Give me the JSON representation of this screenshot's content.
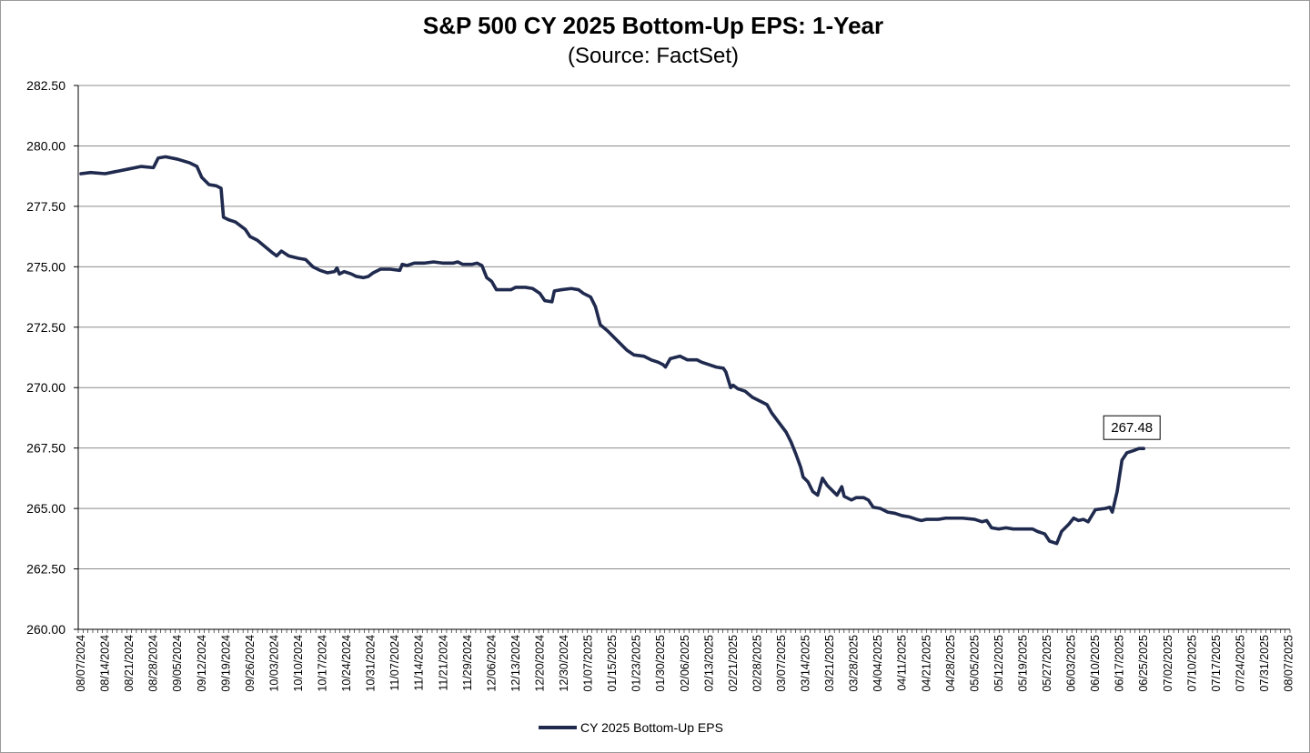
{
  "chart_data": {
    "type": "line",
    "title": "S&P 500 CY 2025 Bottom-Up  EPS: 1-Year",
    "subtitle": "(Source: FactSet)",
    "xlabel": "",
    "ylabel": "",
    "ylim": [
      260,
      282.5
    ],
    "yticks": [
      "260.00",
      "262.50",
      "265.00",
      "267.50",
      "270.00",
      "272.50",
      "275.00",
      "277.50",
      "280.00",
      "282.50"
    ],
    "xticks": [
      "08/07/2024",
      "08/14/2024",
      "08/21/2024",
      "08/28/2024",
      "09/05/2024",
      "09/12/2024",
      "09/19/2024",
      "09/26/2024",
      "10/03/2024",
      "10/10/2024",
      "10/17/2024",
      "10/24/2024",
      "10/31/2024",
      "11/07/2024",
      "11/14/2024",
      "11/21/2024",
      "11/29/2024",
      "12/06/2024",
      "12/13/2024",
      "12/20/2024",
      "12/30/2024",
      "01/07/2025",
      "01/15/2025",
      "01/23/2025",
      "01/30/2025",
      "02/06/2025",
      "02/13/2025",
      "02/21/2025",
      "02/28/2025",
      "03/07/2025",
      "03/14/2025",
      "03/21/2025",
      "03/28/2025",
      "04/04/2025",
      "04/11/2025",
      "04/21/2025",
      "04/28/2025",
      "05/05/2025",
      "05/12/2025",
      "05/19/2025",
      "05/27/2025",
      "06/03/2025",
      "06/10/2025",
      "06/17/2025",
      "06/25/2025",
      "07/02/2025",
      "07/10/2025",
      "07/17/2025",
      "07/24/2025",
      "07/31/2025",
      "08/07/2025"
    ],
    "grid": true,
    "legend": "bottom-center",
    "series": [
      {
        "name": "CY 2025 Bottom-Up EPS",
        "color": "#1f2a4e",
        "points": [
          [
            0,
            278.85
          ],
          [
            0.4,
            278.9
          ],
          [
            1.0,
            278.85
          ],
          [
            1.5,
            278.95
          ],
          [
            2.0,
            279.05
          ],
          [
            2.5,
            279.15
          ],
          [
            3.0,
            279.1
          ],
          [
            3.2,
            279.5
          ],
          [
            3.5,
            279.55
          ],
          [
            4.0,
            279.45
          ],
          [
            4.5,
            279.3
          ],
          [
            4.8,
            279.15
          ],
          [
            5.0,
            278.7
          ],
          [
            5.3,
            278.4
          ],
          [
            5.6,
            278.35
          ],
          [
            5.8,
            278.25
          ],
          [
            5.9,
            277.05
          ],
          [
            6.1,
            276.95
          ],
          [
            6.4,
            276.85
          ],
          [
            6.6,
            276.7
          ],
          [
            6.8,
            276.55
          ],
          [
            7.0,
            276.25
          ],
          [
            7.3,
            276.1
          ],
          [
            7.6,
            275.85
          ],
          [
            7.9,
            275.6
          ],
          [
            8.1,
            275.45
          ],
          [
            8.3,
            275.65
          ],
          [
            8.6,
            275.45
          ],
          [
            9.0,
            275.35
          ],
          [
            9.3,
            275.3
          ],
          [
            9.6,
            275.0
          ],
          [
            9.9,
            274.85
          ],
          [
            10.2,
            274.75
          ],
          [
            10.5,
            274.8
          ],
          [
            10.6,
            274.95
          ],
          [
            10.7,
            274.7
          ],
          [
            10.9,
            274.8
          ],
          [
            11.2,
            274.7
          ],
          [
            11.4,
            274.6
          ],
          [
            11.7,
            274.55
          ],
          [
            11.9,
            274.6
          ],
          [
            12.1,
            274.75
          ],
          [
            12.4,
            274.9
          ],
          [
            12.8,
            274.9
          ],
          [
            13.2,
            274.85
          ],
          [
            13.3,
            275.1
          ],
          [
            13.5,
            275.05
          ],
          [
            13.8,
            275.15
          ],
          [
            14.2,
            275.15
          ],
          [
            14.6,
            275.2
          ],
          [
            15.0,
            275.15
          ],
          [
            15.4,
            275.15
          ],
          [
            15.6,
            275.2
          ],
          [
            15.8,
            275.1
          ],
          [
            16.2,
            275.1
          ],
          [
            16.4,
            275.15
          ],
          [
            16.6,
            275.05
          ],
          [
            16.8,
            274.55
          ],
          [
            17.0,
            274.4
          ],
          [
            17.2,
            274.05
          ],
          [
            17.8,
            274.05
          ],
          [
            18.0,
            274.15
          ],
          [
            18.4,
            274.15
          ],
          [
            18.7,
            274.1
          ],
          [
            19.0,
            273.9
          ],
          [
            19.2,
            273.6
          ],
          [
            19.5,
            273.55
          ],
          [
            19.6,
            274.0
          ],
          [
            19.9,
            274.05
          ],
          [
            20.3,
            274.1
          ],
          [
            20.6,
            274.05
          ],
          [
            20.8,
            273.9
          ],
          [
            21.1,
            273.75
          ],
          [
            21.3,
            273.35
          ],
          [
            21.5,
            272.6
          ],
          [
            21.8,
            272.35
          ],
          [
            22.1,
            272.05
          ],
          [
            22.3,
            271.85
          ],
          [
            22.6,
            271.55
          ],
          [
            22.9,
            271.35
          ],
          [
            23.3,
            271.3
          ],
          [
            23.6,
            271.15
          ],
          [
            23.9,
            271.05
          ],
          [
            24.1,
            270.95
          ],
          [
            24.2,
            270.85
          ],
          [
            24.4,
            271.2
          ],
          [
            24.8,
            271.3
          ],
          [
            25.1,
            271.15
          ],
          [
            25.5,
            271.15
          ],
          [
            25.7,
            271.05
          ],
          [
            26.0,
            270.95
          ],
          [
            26.3,
            270.85
          ],
          [
            26.6,
            270.8
          ],
          [
            26.7,
            270.65
          ],
          [
            26.9,
            270.0
          ],
          [
            27.0,
            270.1
          ],
          [
            27.2,
            269.95
          ],
          [
            27.5,
            269.85
          ],
          [
            27.8,
            269.6
          ],
          [
            28.1,
            269.45
          ],
          [
            28.4,
            269.3
          ],
          [
            28.6,
            268.95
          ],
          [
            28.9,
            268.55
          ],
          [
            29.2,
            268.15
          ],
          [
            29.4,
            267.75
          ],
          [
            29.6,
            267.25
          ],
          [
            29.8,
            266.7
          ],
          [
            29.9,
            266.3
          ],
          [
            30.1,
            266.1
          ],
          [
            30.3,
            265.7
          ],
          [
            30.5,
            265.55
          ],
          [
            30.7,
            266.25
          ],
          [
            30.9,
            265.95
          ],
          [
            31.1,
            265.75
          ],
          [
            31.3,
            265.55
          ],
          [
            31.5,
            265.9
          ],
          [
            31.6,
            265.5
          ],
          [
            31.9,
            265.35
          ],
          [
            32.1,
            265.45
          ],
          [
            32.4,
            265.45
          ],
          [
            32.6,
            265.35
          ],
          [
            32.8,
            265.05
          ],
          [
            33.1,
            265.0
          ],
          [
            33.4,
            264.85
          ],
          [
            33.7,
            264.8
          ],
          [
            34.0,
            264.7
          ],
          [
            34.3,
            264.65
          ],
          [
            34.6,
            264.55
          ],
          [
            34.8,
            264.5
          ],
          [
            35.0,
            264.55
          ],
          [
            35.5,
            264.55
          ],
          [
            35.8,
            264.6
          ],
          [
            36.5,
            264.6
          ],
          [
            37.0,
            264.55
          ],
          [
            37.3,
            264.45
          ],
          [
            37.5,
            264.5
          ],
          [
            37.7,
            264.2
          ],
          [
            38.0,
            264.15
          ],
          [
            38.3,
            264.2
          ],
          [
            38.6,
            264.15
          ],
          [
            39.0,
            264.15
          ],
          [
            39.4,
            264.15
          ],
          [
            39.6,
            264.05
          ],
          [
            39.9,
            263.95
          ],
          [
            40.1,
            263.65
          ],
          [
            40.4,
            263.55
          ],
          [
            40.6,
            264.05
          ],
          [
            40.9,
            264.35
          ],
          [
            41.1,
            264.6
          ],
          [
            41.3,
            264.5
          ],
          [
            41.5,
            264.55
          ],
          [
            41.7,
            264.45
          ],
          [
            42.0,
            264.95
          ],
          [
            42.4,
            265.0
          ],
          [
            42.6,
            265.05
          ],
          [
            42.7,
            264.85
          ],
          [
            42.9,
            265.7
          ],
          [
            43.1,
            267.0
          ],
          [
            43.3,
            267.3
          ],
          [
            43.6,
            267.4
          ],
          [
            43.8,
            267.48
          ],
          [
            44.0,
            267.48
          ]
        ],
        "callout": "267.48"
      }
    ]
  }
}
